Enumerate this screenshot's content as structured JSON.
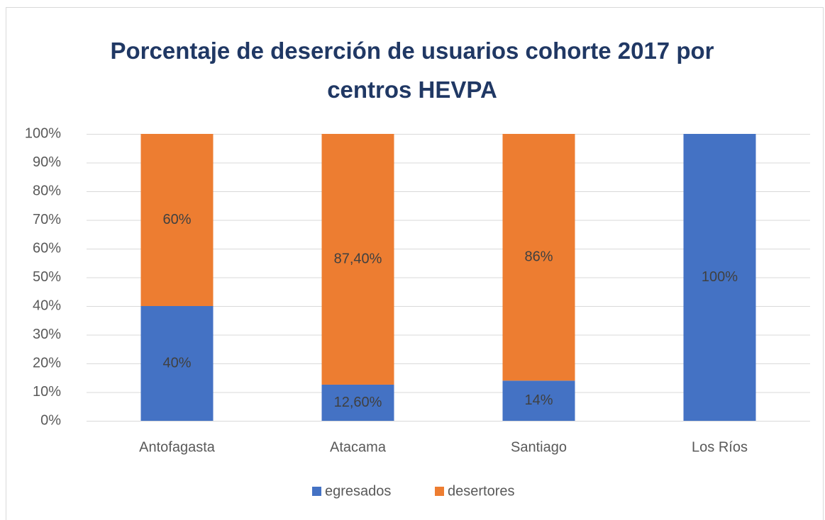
{
  "chart_data": {
    "type": "stacked_bar",
    "title": "Porcentaje de deserción de usuarios cohorte 2017 por centros HEVPA",
    "categories": [
      "Antofagasta",
      "Atacama",
      "Santiago",
      "Los Ríos"
    ],
    "series": [
      {
        "name": "egresados",
        "color": "#4472c4",
        "values": [
          40,
          12.6,
          14,
          100
        ],
        "value_labels": [
          "40%",
          "12,60%",
          "14%",
          "100%"
        ]
      },
      {
        "name": "desertores",
        "color": "#ed7d31",
        "values": [
          60,
          87.4,
          86,
          0
        ],
        "value_labels": [
          "60%",
          "87,40%",
          "86%",
          null
        ]
      }
    ],
    "ylim": [
      0,
      100
    ],
    "yticks": [
      {
        "value": 0,
        "label": "0%"
      },
      {
        "value": 10,
        "label": "10%"
      },
      {
        "value": 20,
        "label": "20%"
      },
      {
        "value": 30,
        "label": "30%"
      },
      {
        "value": 40,
        "label": "40%"
      },
      {
        "value": 50,
        "label": "50%"
      },
      {
        "value": 60,
        "label": "60%"
      },
      {
        "value": 70,
        "label": "70%"
      },
      {
        "value": 80,
        "label": "80%"
      },
      {
        "value": 90,
        "label": "90%"
      },
      {
        "value": 100,
        "label": "100%"
      }
    ],
    "grid": true,
    "legend": "bottom"
  }
}
